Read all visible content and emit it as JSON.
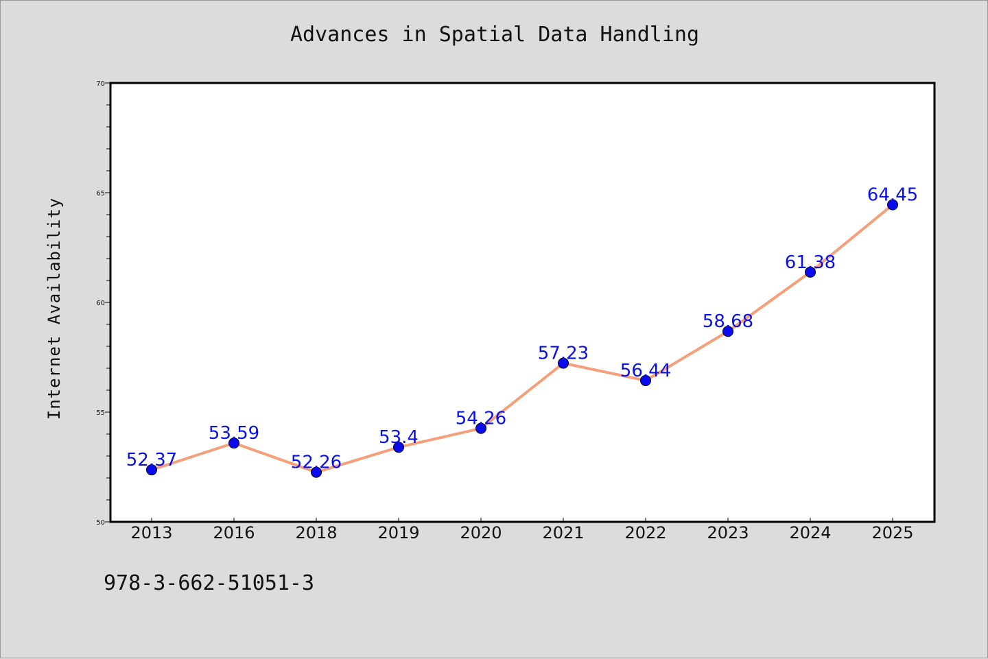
{
  "title": "Advances in Spatial Data Handling",
  "footer_text": "978-3-662-51051-3",
  "colors": {
    "line": "#f4a07a",
    "marker": "#0a0af0",
    "label": "#0a10e8",
    "background": "#dcdcdc",
    "plot_bg": "#ffffff"
  },
  "chart_data": {
    "type": "line",
    "title": "Advances in Spatial Data Handling",
    "xlabel": "",
    "ylabel": "Internet Availability",
    "categories": [
      "2013",
      "2016",
      "2018",
      "2019",
      "2020",
      "2021",
      "2022",
      "2023",
      "2024",
      "2025"
    ],
    "series": [
      {
        "values": [
          52.37,
          53.59,
          52.26,
          53.4,
          54.26,
          57.23,
          56.44,
          58.68,
          61.38,
          64.45
        ]
      }
    ],
    "data_labels": [
      "52.37",
      "53.59",
      "52.26",
      "53.4",
      "54.26",
      "57.23",
      "56.44",
      "58.68",
      "61.38",
      "64.45"
    ],
    "ylim": [
      50,
      70
    ],
    "yticks": [
      "50",
      "55",
      "60",
      "65",
      "70"
    ],
    "grid": false,
    "legend": "none"
  }
}
